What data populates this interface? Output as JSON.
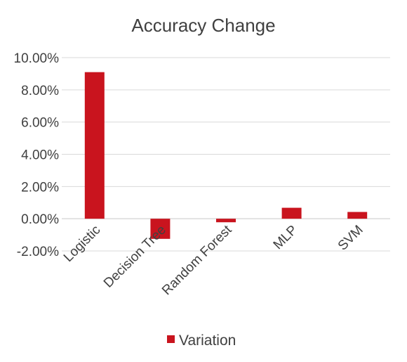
{
  "chart_data": {
    "type": "bar",
    "title": "Accuracy Change",
    "categories": [
      "Logistic",
      "Decision Tree",
      "Random Forest",
      "MLP",
      "SVM"
    ],
    "series": [
      {
        "name": "Variation",
        "values": [
          9.1,
          -1.25,
          -0.22,
          0.68,
          0.42
        ],
        "color": "#c9141e"
      }
    ],
    "ylim": [
      -2,
      10
    ],
    "ytick_step": 2,
    "ytick_labels": [
      "-2.00%",
      "0.00%",
      "2.00%",
      "4.00%",
      "6.00%",
      "8.00%",
      "10.00%"
    ],
    "xlabel": "",
    "ylabel": "",
    "grid": true,
    "legend_position": "bottom"
  }
}
